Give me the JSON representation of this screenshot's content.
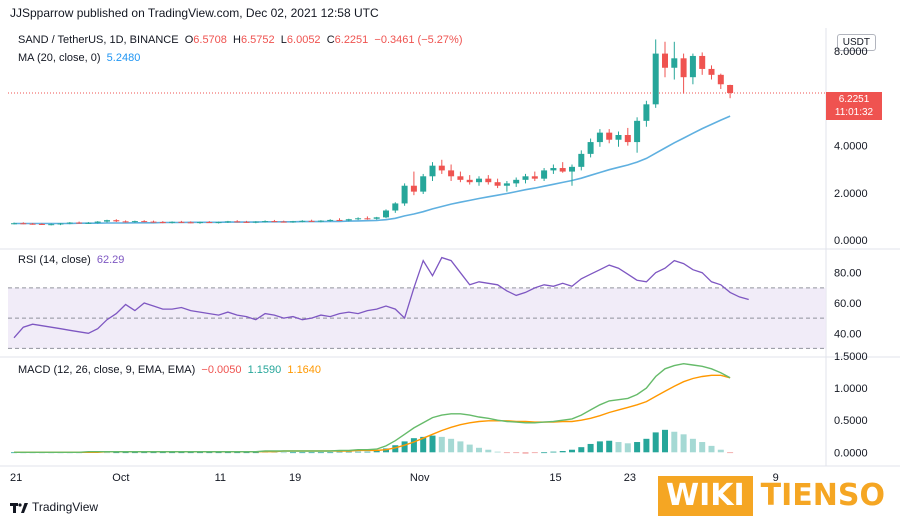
{
  "publish_line": "JJSpparrow published on TradingView.com, Dec 02, 2021 12:58 UTC",
  "header": {
    "symbol": "SAND / TetherUS, 1D, BINANCE",
    "o_label": "O",
    "o_value": "6.5708",
    "h_label": "H",
    "h_value": "6.5752",
    "l_label": "L",
    "l_value": "6.0052",
    "c_label": "C",
    "c_value": "6.2251",
    "change": "−0.3461 (−5.27%)",
    "ma_label": "MA (20, close, 0)",
    "ma_value": "5.2480",
    "rsi_label": "RSI (14, close)",
    "rsi_value": "62.29",
    "macd_label": "MACD (12, 26, close, 9, EMA, EMA)",
    "macd_hist": "−0.0050",
    "macd_line": "1.1590",
    "macd_signal": "1.1640"
  },
  "currency_button": "USDT",
  "price_tag": {
    "price": "6.2251",
    "countdown": "11:01:32"
  },
  "brand": "TradingView",
  "watermark": {
    "part1": "WIKI",
    "part2": "TIENSO"
  },
  "colors": {
    "up": "#26a69a",
    "down": "#ef5350",
    "ma": "#5fb0e0",
    "rsi": "#7e57c2",
    "macd": "#66bb6a",
    "signal": "#ff9800",
    "hist_up": "#26a69a",
    "hist_up_light": "#a5d9d4",
    "hist_down": "#ef9a9a"
  },
  "chart_data": [
    {
      "type": "candlestick",
      "title": "SAND / TetherUS, 1D, BINANCE",
      "y_ticks": [
        "8.0000",
        "6.0000",
        "4.0000",
        "2.0000",
        "0.0000"
      ],
      "ylim": [
        0,
        8.9
      ],
      "x_ticks": [
        "21",
        "Oct",
        "11",
        "19",
        "Nov",
        "15",
        "23",
        "",
        "9"
      ],
      "ohlc": [
        [
          0.7,
          0.74,
          0.66,
          0.71
        ],
        [
          0.71,
          0.75,
          0.67,
          0.69
        ],
        [
          0.69,
          0.72,
          0.65,
          0.68
        ],
        [
          0.68,
          0.71,
          0.64,
          0.66
        ],
        [
          0.66,
          0.7,
          0.62,
          0.67
        ],
        [
          0.67,
          0.72,
          0.63,
          0.7
        ],
        [
          0.7,
          0.76,
          0.67,
          0.74
        ],
        [
          0.74,
          0.78,
          0.69,
          0.72
        ],
        [
          0.72,
          0.76,
          0.68,
          0.73
        ],
        [
          0.73,
          0.8,
          0.7,
          0.78
        ],
        [
          0.78,
          0.86,
          0.74,
          0.84
        ],
        [
          0.84,
          0.88,
          0.76,
          0.79
        ],
        [
          0.79,
          0.83,
          0.74,
          0.77
        ],
        [
          0.77,
          0.82,
          0.73,
          0.8
        ],
        [
          0.8,
          0.84,
          0.75,
          0.78
        ],
        [
          0.78,
          0.82,
          0.73,
          0.76
        ],
        [
          0.76,
          0.8,
          0.71,
          0.74
        ],
        [
          0.74,
          0.79,
          0.7,
          0.77
        ],
        [
          0.77,
          0.81,
          0.72,
          0.75
        ],
        [
          0.75,
          0.79,
          0.71,
          0.73
        ],
        [
          0.73,
          0.78,
          0.69,
          0.76
        ],
        [
          0.76,
          0.8,
          0.72,
          0.74
        ],
        [
          0.74,
          0.78,
          0.7,
          0.76
        ],
        [
          0.76,
          0.81,
          0.72,
          0.79
        ],
        [
          0.79,
          0.84,
          0.75,
          0.77
        ],
        [
          0.77,
          0.81,
          0.73,
          0.75
        ],
        [
          0.75,
          0.8,
          0.71,
          0.78
        ],
        [
          0.78,
          0.83,
          0.74,
          0.8
        ],
        [
          0.8,
          0.85,
          0.76,
          0.78
        ],
        [
          0.78,
          0.82,
          0.74,
          0.77
        ],
        [
          0.77,
          0.81,
          0.73,
          0.79
        ],
        [
          0.79,
          0.84,
          0.75,
          0.81
        ],
        [
          0.81,
          0.86,
          0.77,
          0.79
        ],
        [
          0.79,
          0.84,
          0.75,
          0.82
        ],
        [
          0.82,
          0.88,
          0.78,
          0.85
        ],
        [
          0.85,
          0.92,
          0.81,
          0.83
        ],
        [
          0.83,
          0.9,
          0.79,
          0.88
        ],
        [
          0.88,
          0.96,
          0.84,
          0.92
        ],
        [
          0.92,
          1.0,
          0.86,
          0.9
        ],
        [
          0.9,
          0.98,
          0.86,
          0.96
        ],
        [
          0.96,
          1.3,
          0.92,
          1.25
        ],
        [
          1.25,
          1.6,
          1.15,
          1.55
        ],
        [
          1.55,
          2.4,
          1.45,
          2.3
        ],
        [
          2.3,
          2.9,
          1.9,
          2.05
        ],
        [
          2.05,
          2.8,
          1.95,
          2.7
        ],
        [
          2.7,
          3.3,
          2.5,
          3.15
        ],
        [
          3.15,
          3.4,
          2.8,
          2.95
        ],
        [
          2.95,
          3.2,
          2.5,
          2.7
        ],
        [
          2.7,
          2.9,
          2.45,
          2.55
        ],
        [
          2.55,
          2.75,
          2.35,
          2.45
        ],
        [
          2.45,
          2.7,
          2.3,
          2.6
        ],
        [
          2.6,
          2.75,
          2.35,
          2.45
        ],
        [
          2.45,
          2.6,
          2.2,
          2.3
        ],
        [
          2.3,
          2.5,
          2.05,
          2.4
        ],
        [
          2.4,
          2.65,
          2.25,
          2.55
        ],
        [
          2.55,
          2.8,
          2.4,
          2.7
        ],
        [
          2.7,
          2.9,
          2.5,
          2.6
        ],
        [
          2.6,
          3.05,
          2.5,
          2.95
        ],
        [
          2.95,
          3.2,
          2.8,
          3.05
        ],
        [
          3.05,
          3.3,
          2.85,
          2.9
        ],
        [
          2.9,
          3.2,
          2.3,
          3.1
        ],
        [
          3.1,
          3.8,
          2.95,
          3.65
        ],
        [
          3.65,
          4.3,
          3.5,
          4.15
        ],
        [
          4.15,
          4.7,
          3.95,
          4.55
        ],
        [
          4.55,
          4.7,
          4.1,
          4.25
        ],
        [
          4.25,
          4.6,
          3.95,
          4.45
        ],
        [
          4.45,
          4.75,
          4.0,
          4.15
        ],
        [
          4.15,
          5.2,
          3.7,
          5.05
        ],
        [
          5.05,
          5.9,
          4.8,
          5.75
        ],
        [
          5.75,
          8.5,
          5.6,
          7.9
        ],
        [
          7.9,
          8.4,
          6.9,
          7.3
        ],
        [
          7.3,
          8.4,
          6.8,
          7.7
        ],
        [
          7.7,
          7.9,
          6.2,
          6.9
        ],
        [
          6.9,
          7.9,
          6.6,
          7.8
        ],
        [
          7.8,
          7.95,
          7.0,
          7.25
        ],
        [
          7.25,
          7.4,
          6.8,
          7.0
        ],
        [
          7.0,
          7.05,
          6.4,
          6.6
        ],
        [
          6.57,
          6.58,
          6.01,
          6.23
        ]
      ],
      "ma_values": [
        0.7,
        0.7,
        0.7,
        0.7,
        0.7,
        0.7,
        0.7,
        0.71,
        0.71,
        0.71,
        0.72,
        0.72,
        0.72,
        0.73,
        0.73,
        0.73,
        0.74,
        0.74,
        0.74,
        0.75,
        0.75,
        0.75,
        0.75,
        0.76,
        0.76,
        0.76,
        0.76,
        0.77,
        0.77,
        0.77,
        0.77,
        0.78,
        0.78,
        0.78,
        0.79,
        0.79,
        0.8,
        0.81,
        0.82,
        0.83,
        0.86,
        0.92,
        1.02,
        1.1,
        1.2,
        1.32,
        1.42,
        1.52,
        1.6,
        1.68,
        1.76,
        1.83,
        1.9,
        1.97,
        2.05,
        2.13,
        2.2,
        2.28,
        2.36,
        2.44,
        2.52,
        2.62,
        2.74,
        2.86,
        2.98,
        3.08,
        3.18,
        3.3,
        3.46,
        3.68,
        3.9,
        4.12,
        4.32,
        4.52,
        4.72,
        4.9,
        5.08,
        5.25
      ]
    },
    {
      "type": "line",
      "title": "RSI (14, close)",
      "y_ticks": [
        "80.00",
        "60.00",
        "40.00"
      ],
      "band": [
        30,
        70
      ],
      "mid": 50,
      "ylim": [
        25,
        95
      ],
      "values": [
        37,
        44,
        46,
        45,
        44,
        43,
        42,
        41,
        40,
        43,
        49,
        53,
        59,
        55,
        60,
        58,
        56,
        56,
        57,
        55,
        54,
        53,
        52,
        54,
        52,
        51,
        49,
        53,
        52,
        50,
        51,
        49,
        50,
        52,
        51,
        53,
        54,
        53,
        55,
        56,
        58,
        56,
        50,
        70,
        88,
        78,
        90,
        88,
        80,
        72,
        74,
        73,
        72,
        68,
        65,
        67,
        70,
        72,
        71,
        73,
        71,
        76,
        79,
        82,
        85,
        83,
        79,
        75,
        74,
        80,
        83,
        88,
        86,
        82,
        80,
        74,
        72,
        67,
        64,
        62.29
      ]
    },
    {
      "type": "line",
      "title": "MACD (12, 26, close, 9, EMA, EMA)",
      "y_ticks": [
        "1.5000",
        "1.0000",
        "0.5000",
        "0.0000"
      ],
      "ylim": [
        -0.12,
        1.5
      ],
      "macd": [
        0,
        0,
        0,
        0,
        0,
        0,
        0,
        0,
        0.01,
        0.01,
        0.01,
        0.01,
        0.01,
        0.01,
        0.01,
        0.01,
        0.01,
        0.01,
        0.01,
        0.01,
        0.01,
        0.01,
        0.01,
        0.01,
        0.01,
        0.01,
        0.01,
        0.02,
        0.02,
        0.02,
        0.02,
        0.02,
        0.02,
        0.02,
        0.02,
        0.03,
        0.03,
        0.04,
        0.04,
        0.05,
        0.1,
        0.18,
        0.28,
        0.38,
        0.46,
        0.54,
        0.58,
        0.6,
        0.6,
        0.58,
        0.55,
        0.53,
        0.5,
        0.48,
        0.47,
        0.46,
        0.46,
        0.47,
        0.48,
        0.5,
        0.52,
        0.58,
        0.66,
        0.74,
        0.8,
        0.82,
        0.84,
        0.9,
        1.0,
        1.18,
        1.3,
        1.35,
        1.38,
        1.36,
        1.34,
        1.3,
        1.24,
        1.16
      ],
      "signal": [
        0,
        0,
        0,
        0,
        0,
        0,
        0,
        0,
        0,
        0,
        0.01,
        0.01,
        0.01,
        0.01,
        0.01,
        0.01,
        0.01,
        0.01,
        0.01,
        0.01,
        0.01,
        0.01,
        0.01,
        0.01,
        0.01,
        0.01,
        0.01,
        0.01,
        0.01,
        0.02,
        0.02,
        0.02,
        0.02,
        0.02,
        0.02,
        0.02,
        0.02,
        0.03,
        0.03,
        0.03,
        0.04,
        0.07,
        0.11,
        0.16,
        0.22,
        0.28,
        0.34,
        0.39,
        0.43,
        0.46,
        0.48,
        0.49,
        0.49,
        0.49,
        0.48,
        0.48,
        0.47,
        0.47,
        0.47,
        0.48,
        0.48,
        0.5,
        0.53,
        0.57,
        0.62,
        0.66,
        0.7,
        0.74,
        0.79,
        0.87,
        0.95,
        1.03,
        1.1,
        1.15,
        1.18,
        1.2,
        1.2,
        1.16
      ],
      "histogram": [
        0,
        0,
        0,
        0,
        0,
        0,
        0,
        0,
        0.01,
        0.01,
        0,
        0,
        0,
        0,
        0,
        0,
        0,
        0,
        0,
        0,
        0,
        0,
        0,
        0,
        0,
        0,
        0,
        0.01,
        0.01,
        0,
        0,
        0,
        0,
        0,
        0,
        0.01,
        0.01,
        0.01,
        0.01,
        0.02,
        0.06,
        0.11,
        0.17,
        0.22,
        0.24,
        0.26,
        0.24,
        0.21,
        0.17,
        0.12,
        0.07,
        0.04,
        0.01,
        -0.01,
        -0.01,
        -0.02,
        -0.01,
        0,
        0.01,
        0.02,
        0.04,
        0.08,
        0.13,
        0.17,
        0.18,
        0.16,
        0.14,
        0.16,
        0.21,
        0.31,
        0.35,
        0.32,
        0.28,
        0.21,
        0.16,
        0.1,
        0.04,
        -0.005
      ]
    }
  ]
}
